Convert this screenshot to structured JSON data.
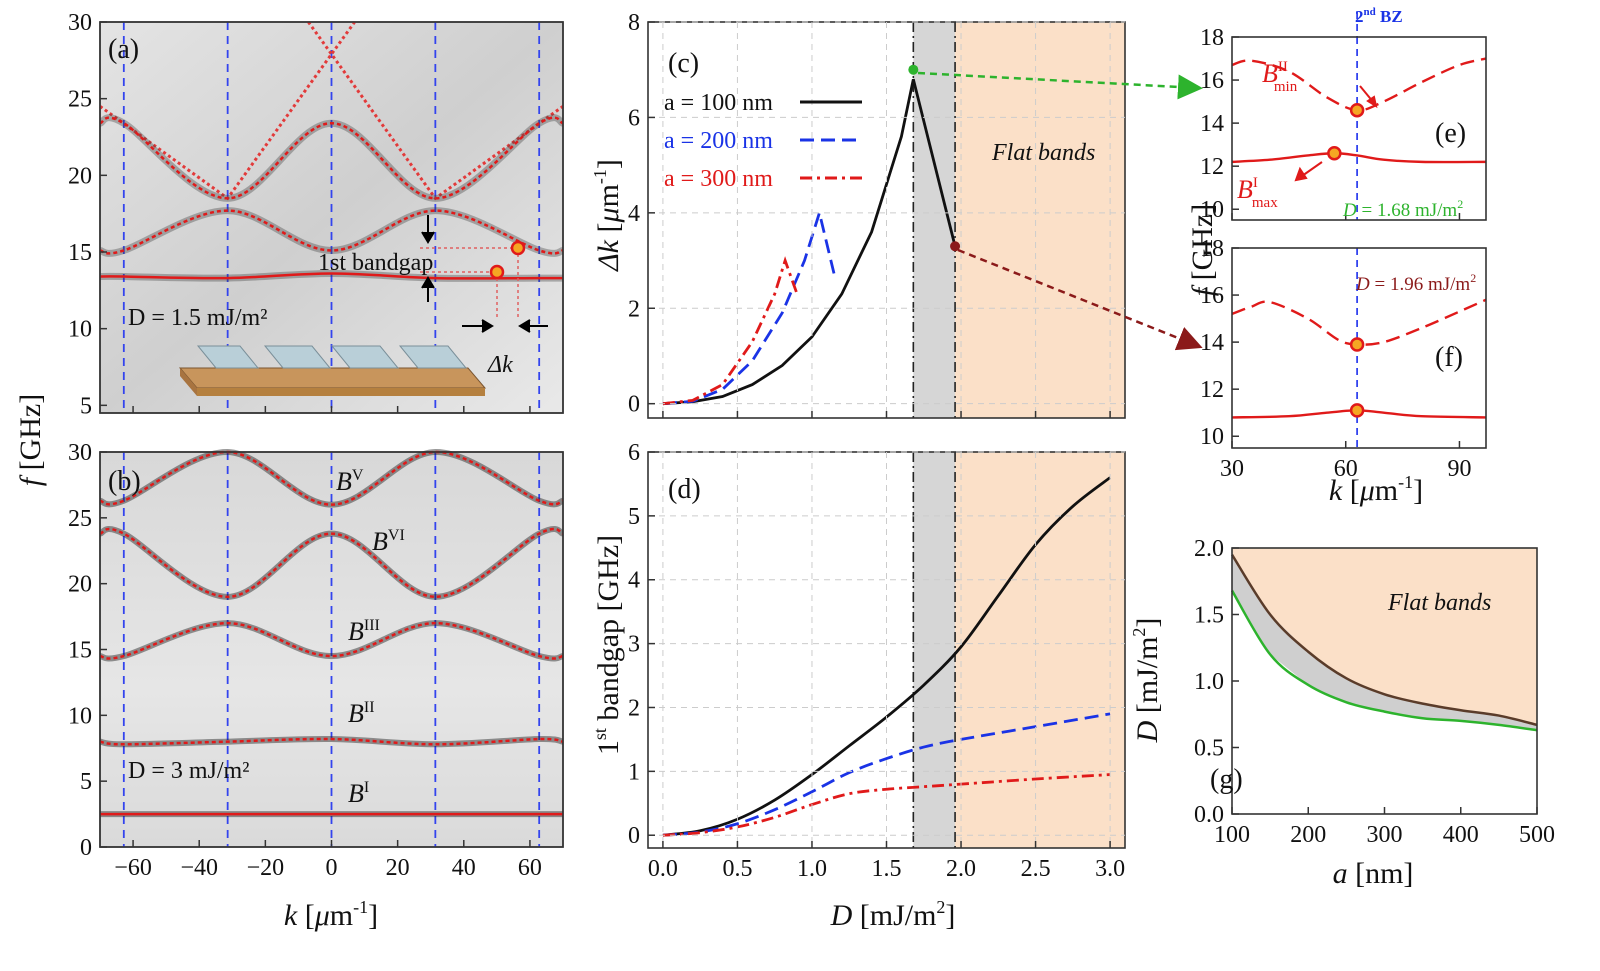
{
  "chart_data": [
    {
      "panel": "(a)",
      "type": "line",
      "xlabel": "k [μm⁻¹]",
      "ylabel": "f [GHz]",
      "xlim": [
        -70,
        70
      ],
      "ylim": [
        4.5,
        30
      ],
      "xticks": [
        -60,
        -40,
        -20,
        0,
        20,
        40,
        60
      ],
      "yticks": [
        5,
        10,
        15,
        20,
        25,
        30
      ],
      "annotations": [
        "1st bandgap",
        "D = 1.5  mJ/m²",
        "Δk"
      ],
      "zone_boundaries_k": [
        -62.8,
        -31.4,
        0,
        31.4,
        62.8
      ],
      "bands": [
        {
          "x": [
            -62.8,
            -31.4,
            0,
            31.4,
            62.8
          ],
          "y": [
            13.4,
            13.3,
            13.6,
            13.3,
            13.3
          ]
        },
        {
          "x": [
            -62.8,
            -31.4,
            0,
            31.4,
            62.8
          ],
          "y": [
            15.1,
            17.7,
            15.1,
            17.7,
            15.1
          ]
        },
        {
          "x": [
            -62.8,
            -31.4,
            0,
            31.4,
            62.8
          ],
          "y": [
            23.4,
            18.5,
            23.4,
            18.5,
            23.4
          ]
        }
      ],
      "light_lines": [
        {
          "x": [
            -70,
            -31.4,
            7
          ],
          "y": [
            24.5,
            18.5,
            30
          ]
        },
        {
          "x": [
            -7,
            31.4,
            70
          ],
          "y": [
            30,
            18.5,
            24.5
          ]
        }
      ]
    },
    {
      "panel": "(b)",
      "type": "line",
      "xlabel": "k [μm⁻¹]",
      "ylabel": "f [GHz]",
      "xlim": [
        -70,
        70
      ],
      "ylim": [
        0,
        30
      ],
      "xticks": [
        -60,
        -40,
        -20,
        0,
        20,
        40,
        60
      ],
      "yticks": [
        0,
        5,
        10,
        15,
        20,
        25,
        30
      ],
      "annotations": [
        "D = 3 mJ/m²"
      ],
      "band_labels": [
        "BV",
        "BVI",
        "BIII",
        "BII",
        "BI"
      ],
      "bands": [
        {
          "name": "BI",
          "x": [
            -70,
            70
          ],
          "y": [
            2.5,
            2.5
          ]
        },
        {
          "name": "BII",
          "x": [
            -70,
            -62.8,
            -31.4,
            0,
            31.4,
            62.8,
            70
          ],
          "y": [
            8,
            7.8,
            8.0,
            8.2,
            7.8,
            8.2,
            8
          ]
        },
        {
          "name": "BIII",
          "x": [
            -62.8,
            -31.4,
            0,
            31.4,
            62.8
          ],
          "y": [
            14.5,
            17.0,
            14.5,
            17.0,
            14.5
          ]
        },
        {
          "x": [
            -62.8,
            -31.4,
            0,
            31.4,
            62.8
          ],
          "y": [
            23.8,
            19.0,
            23.8,
            19.0,
            23.8
          ]
        },
        {
          "name": "BV",
          "x": [
            -62.8,
            -31.4,
            0,
            31.4,
            62.8
          ],
          "y": [
            26.3,
            30.5,
            26.0,
            30.5,
            26.3
          ]
        }
      ]
    },
    {
      "panel": "(c)",
      "type": "line",
      "xlabel": "",
      "ylabel": "Δk [μm⁻¹]",
      "xlim": [
        -0.1,
        3.1
      ],
      "ylim": [
        -0.3,
        8
      ],
      "xticks": [
        0.0,
        0.5,
        1.0,
        1.5,
        2.0,
        2.5,
        3.0
      ],
      "yticks": [
        0,
        2,
        4,
        6,
        8
      ],
      "shaded_region_label": "Flat bands",
      "shaded_gray": [
        1.68,
        1.96
      ],
      "shaded_orange": [
        1.96,
        3.1
      ],
      "series": [
        {
          "name": "a = 100 nm",
          "color": "#111111",
          "dash": "solid",
          "x": [
            0.0,
            0.2,
            0.4,
            0.6,
            0.8,
            1.0,
            1.2,
            1.4,
            1.6,
            1.68,
            1.96
          ],
          "y": [
            0.0,
            0.04,
            0.15,
            0.4,
            0.8,
            1.4,
            2.3,
            3.6,
            5.6,
            6.8,
            3.3
          ]
        },
        {
          "name": "a = 200 nm",
          "color": "#1a33e6",
          "dash": "dash",
          "x": [
            0.0,
            0.2,
            0.4,
            0.6,
            0.8,
            0.95,
            1.05,
            1.15
          ],
          "y": [
            0.0,
            0.05,
            0.3,
            0.9,
            1.9,
            3.0,
            4.0,
            2.7
          ]
        },
        {
          "name": "a = 300 nm",
          "color": "#e01a1a",
          "dash": "dashdot",
          "x": [
            0.0,
            0.2,
            0.4,
            0.6,
            0.75,
            0.82,
            0.9
          ],
          "y": [
            0.0,
            0.07,
            0.4,
            1.3,
            2.3,
            3.0,
            2.3
          ]
        }
      ]
    },
    {
      "panel": "(d)",
      "type": "line",
      "xlabel": "D [mJ/m²]",
      "ylabel": "1st bandgap [GHz]",
      "xlim": [
        -0.1,
        3.1
      ],
      "ylim": [
        -0.2,
        6
      ],
      "xticks": [
        0.0,
        0.5,
        1.0,
        1.5,
        2.0,
        2.5,
        3.0
      ],
      "yticks": [
        0,
        1,
        2,
        3,
        4,
        5,
        6
      ],
      "shaded_gray": [
        1.68,
        1.96
      ],
      "shaded_orange": [
        1.96,
        3.1
      ],
      "series": [
        {
          "name": "a = 100 nm",
          "color": "#111111",
          "dash": "solid",
          "x": [
            0.0,
            0.25,
            0.5,
            0.75,
            1.0,
            1.25,
            1.5,
            1.75,
            2.0,
            2.25,
            2.5,
            2.75,
            3.0
          ],
          "y": [
            0.0,
            0.07,
            0.25,
            0.55,
            0.95,
            1.4,
            1.85,
            2.35,
            2.95,
            3.75,
            4.55,
            5.15,
            5.6
          ]
        },
        {
          "name": "a = 200 nm",
          "color": "#1a33e6",
          "dash": "dash",
          "x": [
            0.0,
            0.25,
            0.5,
            0.75,
            1.0,
            1.25,
            1.5,
            1.75,
            2.0,
            2.5,
            3.0
          ],
          "y": [
            0.0,
            0.05,
            0.18,
            0.4,
            0.68,
            0.98,
            1.2,
            1.38,
            1.5,
            1.7,
            1.9
          ]
        },
        {
          "name": "a = 300 nm",
          "color": "#e01a1a",
          "dash": "dashdot",
          "x": [
            0.0,
            0.25,
            0.5,
            0.75,
            1.0,
            1.25,
            1.5,
            1.75,
            2.0,
            2.5,
            3.0
          ],
          "y": [
            0.0,
            0.04,
            0.13,
            0.28,
            0.48,
            0.65,
            0.72,
            0.76,
            0.8,
            0.88,
            0.95
          ]
        }
      ]
    },
    {
      "panel": "(e)",
      "type": "line",
      "title": "2nd BZ",
      "xlim": [
        30,
        97
      ],
      "ylim": [
        9.5,
        18
      ],
      "yticks": [
        10,
        12,
        14,
        16,
        18
      ],
      "annotation": "D = 1.68 mJ/m²",
      "markers_labels": [
        "BIImin",
        "BImax"
      ],
      "series": [
        {
          "dash": "solid",
          "color": "#e01a1a",
          "x": [
            30,
            40,
            50,
            57,
            63,
            70,
            80,
            97
          ],
          "y": [
            12.2,
            12.3,
            12.5,
            12.6,
            12.5,
            12.3,
            12.2,
            12.2
          ]
        },
        {
          "dash": "dash",
          "color": "#e01a1a",
          "x": [
            30,
            35,
            45,
            55,
            63,
            70,
            80,
            90,
            97
          ],
          "y": [
            16.7,
            16.9,
            16.4,
            15.2,
            14.6,
            15.0,
            15.9,
            16.7,
            17.0
          ]
        }
      ],
      "markers": [
        {
          "x": 63,
          "y": 14.6
        },
        {
          "x": 57,
          "y": 12.6
        }
      ]
    },
    {
      "panel": "(f)",
      "type": "line",
      "xlabel": "k [μm⁻¹]",
      "xlim": [
        30,
        97
      ],
      "ylim": [
        9.5,
        18
      ],
      "xticks": [
        30,
        60,
        90
      ],
      "yticks": [
        10,
        12,
        14,
        16,
        18
      ],
      "annotation": "D = 1.96 mJ/m²",
      "shared_ylabel": "f [GHz]",
      "series": [
        {
          "dash": "solid",
          "color": "#e01a1a",
          "x": [
            30,
            45,
            55,
            63,
            70,
            80,
            97
          ],
          "y": [
            10.8,
            10.85,
            11.0,
            11.1,
            11.0,
            10.85,
            10.8
          ]
        },
        {
          "dash": "dash",
          "color": "#e01a1a",
          "x": [
            30,
            35,
            40,
            50,
            58,
            63,
            70,
            80,
            90,
            97
          ],
          "y": [
            15.2,
            15.5,
            15.7,
            15.0,
            14.1,
            13.9,
            14.0,
            14.6,
            15.3,
            15.8
          ]
        }
      ],
      "markers": [
        {
          "x": 63,
          "y": 13.9
        },
        {
          "x": 63,
          "y": 11.1
        }
      ]
    },
    {
      "panel": "(g)",
      "type": "area",
      "xlabel": "a [nm]",
      "ylabel": "D [mJ/m²]",
      "xlim": [
        100,
        500
      ],
      "ylim": [
        0,
        2
      ],
      "xticks": [
        100,
        200,
        300,
        400,
        500
      ],
      "yticks": [
        0.0,
        0.5,
        1.0,
        1.5,
        2.0
      ],
      "region_label": "Flat bands",
      "series": [
        {
          "color": "#5a3c2a",
          "x": [
            100,
            150,
            200,
            250,
            300,
            350,
            400,
            450,
            500
          ],
          "y": [
            1.95,
            1.5,
            1.22,
            1.02,
            0.9,
            0.83,
            0.78,
            0.74,
            0.67
          ]
        },
        {
          "color": "#2db32d",
          "x": [
            100,
            150,
            200,
            250,
            300,
            350,
            400,
            450,
            500
          ],
          "y": [
            1.68,
            1.2,
            0.97,
            0.84,
            0.77,
            0.72,
            0.7,
            0.67,
            0.63
          ]
        }
      ]
    }
  ]
}
